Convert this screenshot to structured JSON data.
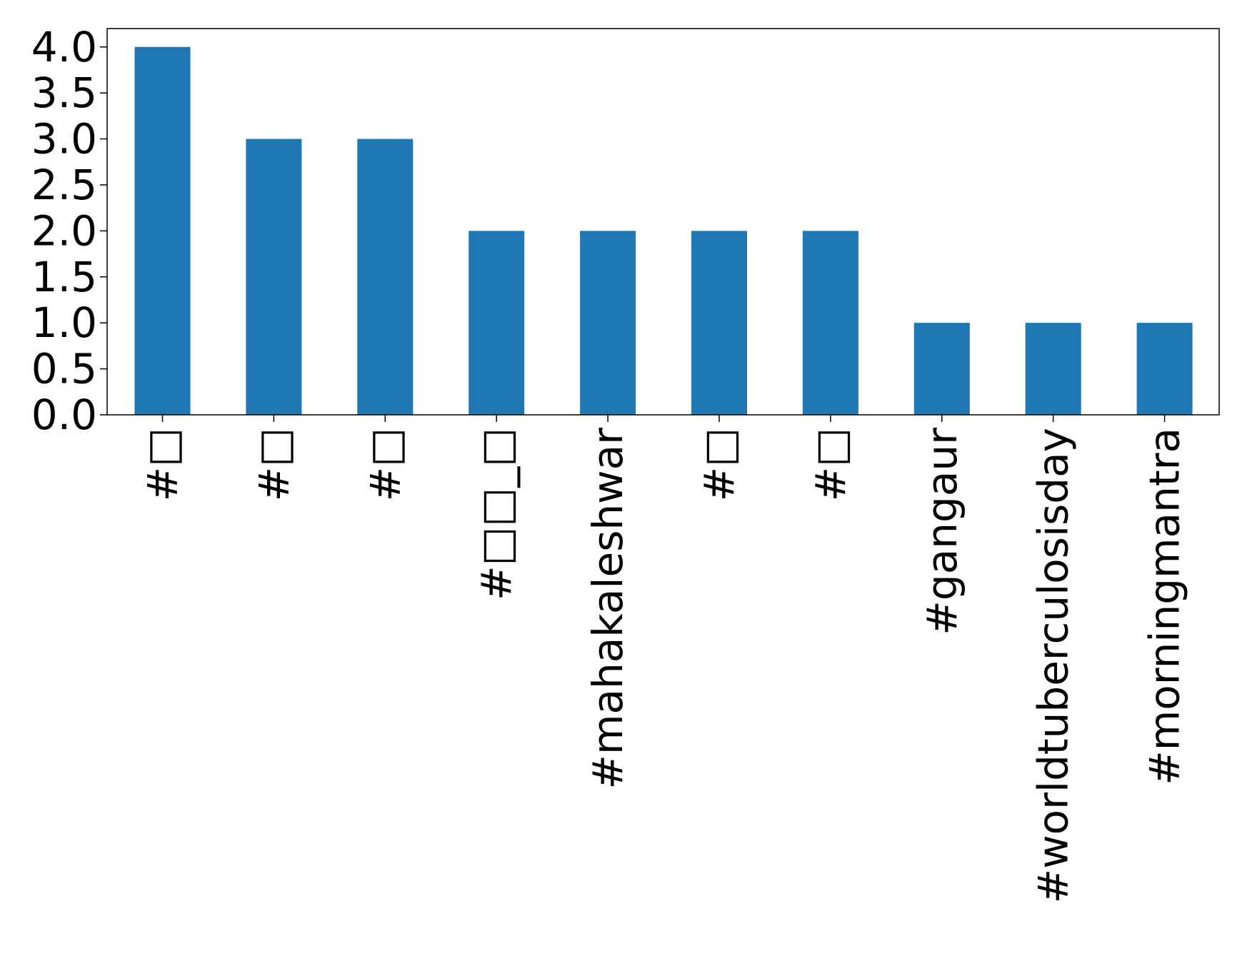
{
  "chart_data": {
    "type": "bar",
    "categories": [
      "#□",
      "#□",
      "#□",
      "#□□_□",
      "#mahakaleshwar",
      "#□",
      "#□",
      "#gangaur",
      "#worldtuberculosisday",
      "#morningmantra"
    ],
    "values": [
      4,
      3,
      3,
      2,
      2,
      2,
      2,
      1,
      1,
      1
    ],
    "title": "",
    "xlabel": "",
    "ylabel": "",
    "ylim": [
      0,
      4.2
    ],
    "yticks": [
      "0.0",
      "0.5",
      "1.0",
      "1.5",
      "2.0",
      "2.5",
      "3.0",
      "3.5",
      "4.0"
    ],
    "grid": false,
    "bar_color": "#1f77b4"
  }
}
